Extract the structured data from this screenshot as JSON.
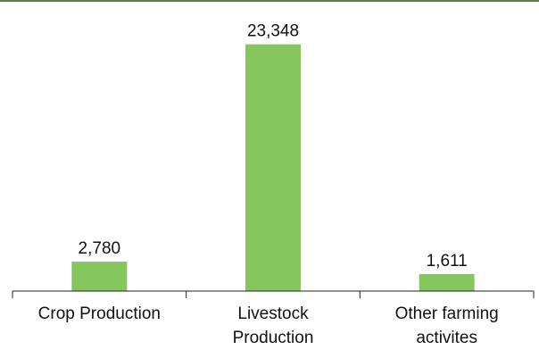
{
  "chart_data": {
    "type": "bar",
    "title": "",
    "xlabel": "",
    "ylabel": "",
    "categories": [
      [
        "Crop Production"
      ],
      [
        "Livestock",
        "Production"
      ],
      [
        "Other farming",
        "activites"
      ]
    ],
    "values": [
      2780,
      23348,
      1611
    ],
    "data_labels": [
      "2,780",
      "23,348",
      "1,611"
    ],
    "ylim": [
      0,
      25000
    ],
    "grid": false,
    "legend": "none",
    "colors": {
      "bar": "#86c65e",
      "top_rule": "#5b7f3f",
      "axis": "#222222"
    }
  }
}
